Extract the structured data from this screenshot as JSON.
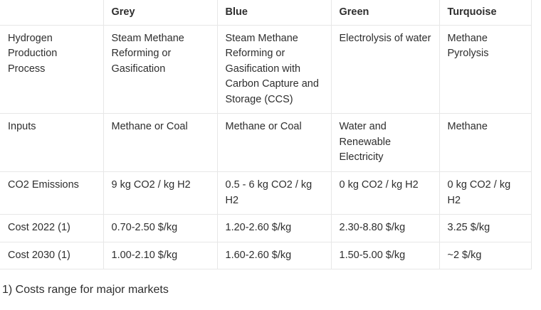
{
  "table": {
    "headers": [
      "",
      "Grey",
      "Blue",
      "Green",
      "Turquoise"
    ],
    "rows": [
      [
        "Hydrogen Production Process",
        "Steam Methane Reforming or Gasification",
        "Steam Methane Reforming or Gasification with Carbon Capture and Storage (CCS)",
        "Electrolysis of water",
        "Methane Pyrolysis"
      ],
      [
        "Inputs",
        "Methane or Coal",
        "Methane or Coal",
        "Water and Renewable Electricity",
        "Methane"
      ],
      [
        "CO2 Emissions",
        "9 kg CO2 / kg H2",
        "0.5 - 6 kg CO2 / kg H2",
        "0 kg CO2 / kg H2",
        "0 kg CO2 / kg H2"
      ],
      [
        "Cost 2022 (1)",
        "0.70-2.50 $/kg",
        "1.20-2.60 $/kg",
        "2.30-8.80 $/kg",
        "3.25 $/kg"
      ],
      [
        "Cost 2030 (1)",
        "1.00-2.10 $/kg",
        "1.60-2.60 $/kg",
        "1.50-5.00 $/kg",
        "~2 $/kg"
      ]
    ]
  },
  "footnote": "1) Costs range for major markets"
}
